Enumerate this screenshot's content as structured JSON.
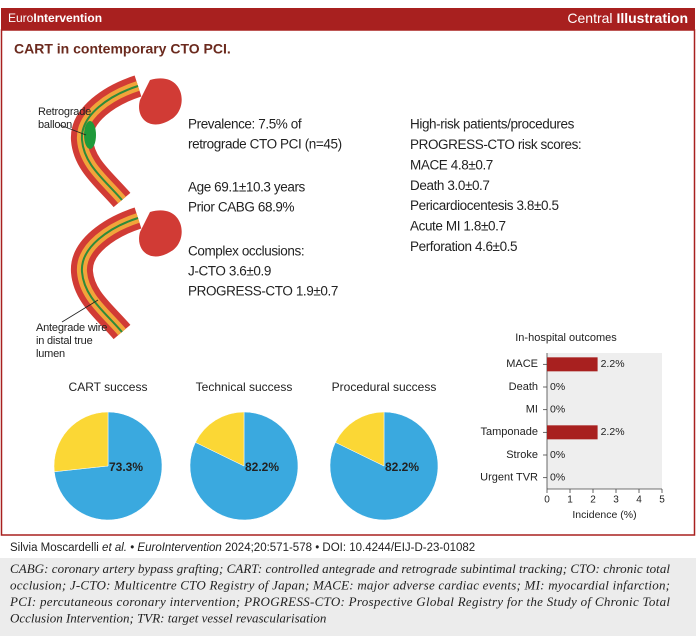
{
  "header": {
    "brand": [
      "Euro",
      "Intervention"
    ],
    "label": [
      "Central",
      "Illustration"
    ]
  },
  "title": "CART in contemporary CTO PCI.",
  "figure_labels": {
    "retrograde": [
      "Retrograde",
      "balloon"
    ],
    "antegrade": [
      "Antegrade wire",
      "in distal true",
      "lumen"
    ]
  },
  "summary": {
    "left": [
      [
        "Prevalence: 7.5% of",
        "retrograde CTO PCI (n=45)"
      ],
      [
        "Age 69.1±10.3 years",
        "Prior CABG 68.9%"
      ],
      [
        "Complex occlusions:",
        "J-CTO 3.6±0.9",
        "PROGRESS-CTO 1.9±0.7"
      ]
    ],
    "right": [
      "High-risk patients/procedures",
      "PROGRESS-CTO risk scores:",
      "MACE 4.8±0.7",
      "Death 3.0±0.7",
      "Pericardiocentesis 3.8±0.5",
      "Acute MI 1.8±0.7",
      "Perforation 4.6±0.5"
    ]
  },
  "chart_data": [
    {
      "type": "pie",
      "title": "CART success",
      "values": [
        73.3,
        26.7
      ],
      "value_labels": [
        "73.3%",
        null
      ],
      "colors": [
        "#3aa9df",
        "#fbd735"
      ]
    },
    {
      "type": "pie",
      "title": "Technical success",
      "values": [
        82.2,
        17.8
      ],
      "value_labels": [
        "82.2%",
        null
      ],
      "colors": [
        "#3aa9df",
        "#fbd735"
      ]
    },
    {
      "type": "pie",
      "title": "Procedural success",
      "values": [
        82.2,
        17.8
      ],
      "value_labels": [
        "82.2%",
        null
      ],
      "colors": [
        "#3aa9df",
        "#fbd735"
      ]
    },
    {
      "type": "bar",
      "orientation": "horizontal",
      "title": "In-hospital outcomes",
      "categories": [
        "MACE",
        "Death",
        "MI",
        "Tamponade",
        "Stroke",
        "Urgent TVR"
      ],
      "values": [
        2.2,
        0,
        0,
        2.2,
        0,
        0
      ],
      "value_labels": [
        "2.2%",
        "0%",
        "0%",
        "2.2%",
        "0%",
        "0%"
      ],
      "color": "#a8201f",
      "xlim": [
        0,
        5
      ],
      "xticks": [
        0,
        1,
        2,
        3,
        4,
        5
      ],
      "xlabel": "Incidence (%)"
    }
  ],
  "citation": {
    "author": "Silvia Moscardelli",
    "etal": "et al.",
    "separator": "•",
    "journal": "EuroIntervention",
    "details": "2024;20:571-578",
    "doi": "DOI: 10.4244/EIJ-D-23-01082"
  },
  "abbreviations": [
    "CABG: coronary artery bypass grafting; CART: controlled antegrade and retrograde subintimal tracking; CTO: chronic total",
    "occlusion; J-CTO: Multicentre CTO Registry of Japan; MACE: major adverse cardiac events; MI: myocardial infarction;",
    "PCI: percutaneous coronary intervention; PROGRESS-CTO: Prospective Global Registry for the Study of Chronic Total",
    "Occlusion Intervention; TVR: target vessel revascularisation"
  ]
}
